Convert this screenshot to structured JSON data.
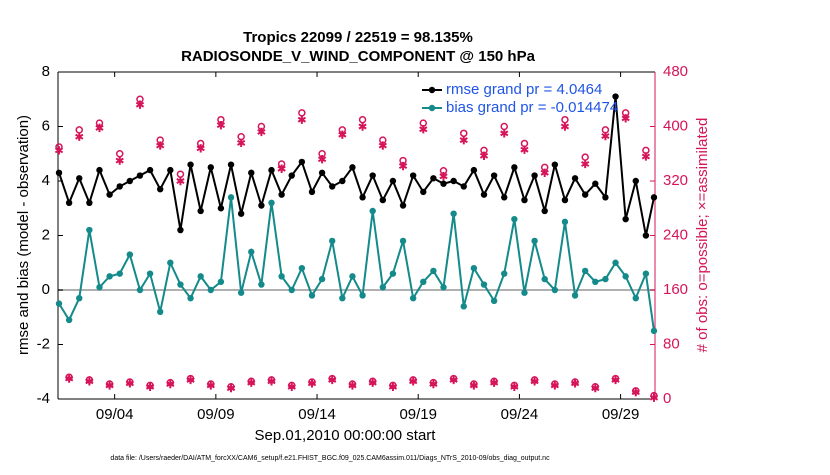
{
  "chart_data": {
    "type": "line",
    "title": "Tropics 22099 / 22519 = 98.135%",
    "subtitle": "RADIOSONDE_V_WIND_COMPONENT @ 150 hPa",
    "x_label": "Sep.01,2010 00:00:00 start",
    "y_label": "rmse and bias (model - observation)",
    "y2_label": "# of obs: o=possible; ×=assimilated",
    "footnote": "data file: /Users/raeder/DAI/ATM_forcXX/CAM6_setup/f.e21.FHIST_BGC.f09_025.CAM6assim.011/Diags_NTrS_2010-09/obs_diag_output.nc",
    "xlim": [
      0.2,
      29.7
    ],
    "xticks": [
      {
        "value": 3,
        "label": "09/04"
      },
      {
        "value": 8,
        "label": "09/09"
      },
      {
        "value": 13,
        "label": "09/14"
      },
      {
        "value": 18,
        "label": "09/19"
      },
      {
        "value": 23,
        "label": "09/24"
      },
      {
        "value": 28,
        "label": "09/29"
      }
    ],
    "ylim": [
      -4,
      8
    ],
    "yticks": [
      -4,
      -2,
      0,
      2,
      4,
      6,
      8
    ],
    "y2lim": [
      0,
      480
    ],
    "y2ticks": [
      0,
      80,
      160,
      240,
      320,
      400,
      480
    ],
    "legend": "upper right",
    "x": [
      0.25,
      0.75,
      1.25,
      1.75,
      2.25,
      2.75,
      3.25,
      3.75,
      4.25,
      4.75,
      5.25,
      5.75,
      6.25,
      6.75,
      7.25,
      7.75,
      8.25,
      8.75,
      9.25,
      9.75,
      10.25,
      10.75,
      11.25,
      11.75,
      12.25,
      12.75,
      13.25,
      13.75,
      14.25,
      14.75,
      15.25,
      15.75,
      16.25,
      16.75,
      17.25,
      17.75,
      18.25,
      18.75,
      19.25,
      19.75,
      20.25,
      20.75,
      21.25,
      21.75,
      22.25,
      22.75,
      23.25,
      23.75,
      24.25,
      24.75,
      25.25,
      25.75,
      26.25,
      26.75,
      27.25,
      27.75,
      28.25,
      28.75,
      29.25,
      29.65
    ],
    "series": [
      {
        "name": "rmse grand pr = 4.0464",
        "color": "#000000",
        "line": true,
        "marker": "dot",
        "values": [
          4.3,
          3.2,
          4.1,
          3.2,
          4.4,
          3.5,
          3.8,
          4.0,
          4.2,
          4.4,
          3.7,
          4.4,
          2.2,
          4.6,
          2.9,
          4.5,
          3.0,
          4.6,
          2.8,
          4.3,
          3.1,
          4.4,
          3.5,
          4.2,
          4.7,
          3.6,
          4.3,
          3.8,
          4.0,
          4.5,
          3.4,
          4.2,
          3.3,
          4.0,
          3.1,
          4.2,
          3.6,
          4.1,
          3.9,
          4.0,
          3.8,
          4.4,
          3.5,
          4.2,
          3.4,
          4.5,
          3.3,
          4.2,
          2.9,
          4.6,
          3.3,
          4.1,
          3.5,
          3.9,
          3.4,
          7.1,
          2.6,
          4.0,
          2.0,
          3.4
        ]
      },
      {
        "name": "bias grand pr = -0.014474",
        "color": "#148a8a",
        "line": true,
        "marker": "dot",
        "values": [
          -0.5,
          -1.1,
          -0.3,
          2.2,
          0.1,
          0.5,
          0.6,
          1.3,
          0.0,
          0.6,
          -0.8,
          1.0,
          0.2,
          -0.3,
          0.5,
          0.0,
          0.3,
          3.4,
          -0.1,
          1.4,
          0.2,
          3.2,
          0.5,
          0.0,
          0.8,
          -0.2,
          0.4,
          1.8,
          -0.3,
          0.5,
          -0.2,
          2.9,
          0.1,
          0.6,
          1.8,
          -0.3,
          0.3,
          0.7,
          0.1,
          2.8,
          -0.6,
          0.8,
          0.2,
          -0.4,
          0.6,
          2.6,
          -0.1,
          1.8,
          0.4,
          0.0,
          2.5,
          -0.2,
          0.7,
          0.3,
          0.4,
          1.0,
          0.5,
          -0.3,
          0.6,
          -1.5
        ]
      },
      {
        "color": "#d6145a",
        "axis": "y2",
        "line": false,
        "marker": "circle",
        "values": [
          370,
          32,
          395,
          28,
          405,
          22,
          360,
          25,
          440,
          20,
          380,
          24,
          330,
          30,
          375,
          22,
          410,
          18,
          385,
          26,
          400,
          28,
          345,
          20,
          420,
          25,
          360,
          30,
          395,
          22,
          410,
          26,
          380,
          20,
          350,
          28,
          405,
          24,
          335,
          30,
          390,
          22,
          365,
          26,
          400,
          20,
          375,
          28,
          340,
          22,
          410,
          25,
          355,
          18,
          395,
          30,
          420,
          12,
          365,
          5
        ]
      },
      {
        "color": "#d6145a",
        "axis": "y2",
        "line": false,
        "marker": "asterisk",
        "values": [
          365,
          30,
          385,
          26,
          398,
          20,
          350,
          23,
          432,
          18,
          372,
          22,
          320,
          28,
          368,
          20,
          402,
          16,
          376,
          24,
          392,
          26,
          338,
          18,
          410,
          23,
          352,
          28,
          388,
          20,
          400,
          24,
          372,
          18,
          342,
          26,
          396,
          22,
          327,
          28,
          380,
          20,
          357,
          24,
          390,
          18,
          366,
          26,
          332,
          20,
          400,
          23,
          345,
          16,
          386,
          28,
          412,
          10,
          356,
          2
        ]
      }
    ]
  }
}
